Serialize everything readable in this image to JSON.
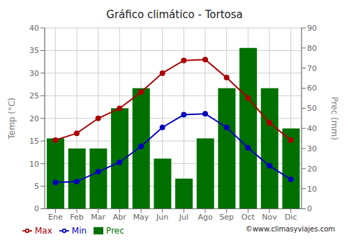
{
  "chart_data": {
    "type": "bar",
    "title": "Gráfico climático - Tortosa",
    "categories": [
      "Ene",
      "Feb",
      "Mar",
      "Abr",
      "May",
      "Jun",
      "Jul",
      "Ago",
      "Sep",
      "Oct",
      "Nov",
      "Dic"
    ],
    "series": [
      {
        "name": "Prec",
        "type": "bar",
        "color": "#007000",
        "axis": "y2",
        "values": [
          35,
          30,
          30,
          50,
          60,
          25,
          15,
          35,
          60,
          80,
          60,
          40
        ]
      },
      {
        "name": "Min",
        "type": "line",
        "color": "#0000BB",
        "marker": "circle",
        "values": [
          5.8,
          6.0,
          8.2,
          10.3,
          13.8,
          18.0,
          20.8,
          21.0,
          18.0,
          13.5,
          9.5,
          6.5
        ]
      },
      {
        "name": "Max",
        "type": "line",
        "color": "#AA0000",
        "marker": "circle",
        "values": [
          15.2,
          16.7,
          20.0,
          22.2,
          25.8,
          30.0,
          32.8,
          33.0,
          29.0,
          24.5,
          19.0,
          15.2
        ]
      }
    ],
    "ylabel": "Temp (°C)",
    "y2label": "Prec (mm)",
    "ylim": [
      0,
      40
    ],
    "yticks": [
      0,
      5,
      10,
      15,
      20,
      25,
      30,
      35,
      40
    ],
    "y2lim": [
      0,
      90
    ],
    "y2ticks": [
      0,
      10,
      20,
      30,
      40,
      50,
      60,
      70,
      80,
      90
    ],
    "grid": true,
    "legend": "bottom",
    "annotations": [
      "©www.climasyviajes.com"
    ]
  }
}
